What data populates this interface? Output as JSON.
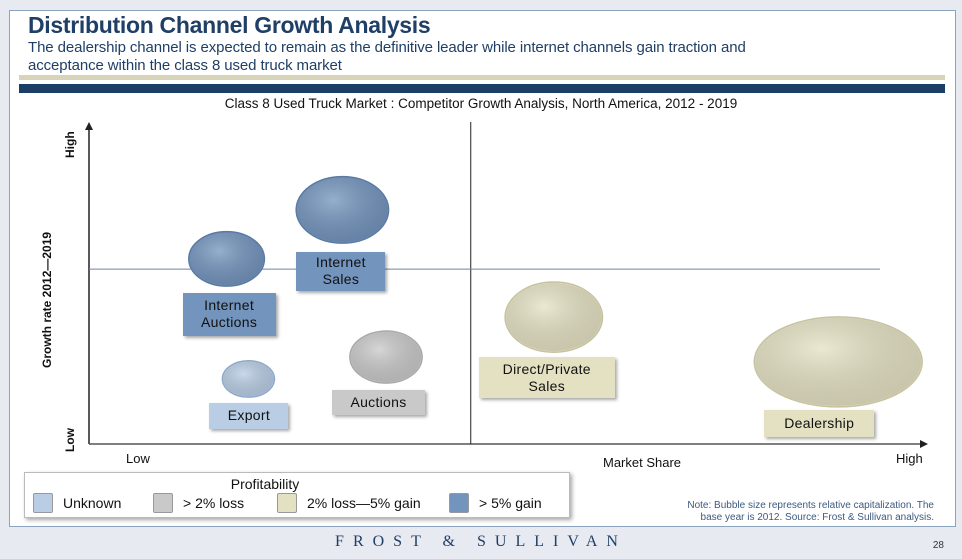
{
  "header": {
    "title": "Distribution Channel Growth Analysis",
    "subtitle_line1": "The dealership channel is expected to remain as the definitive leader while internet channels gain traction and",
    "subtitle_line2": "acceptance within the class 8 used truck market"
  },
  "chart_data": {
    "type": "bubble",
    "title": "Class 8 Used Truck Market : Competitor Growth Analysis, North America, 2012 - 2019",
    "xlabel": "Market Share",
    "ylabel": "Growth rate 2012—2019",
    "x_ticks": {
      "low": "Low",
      "high": "High"
    },
    "y_ticks": {
      "low": "Low",
      "high": "High"
    },
    "scale_note": "relative position 0-100 (axes unnumbered)",
    "xlim": [
      0,
      100
    ],
    "ylim": [
      0,
      100
    ],
    "quadrant_divider": {
      "x": 45.5,
      "y": 54.3
    },
    "points": [
      {
        "label": "Internet Auctions",
        "x": 16.4,
        "y": 57.5,
        "size": 45,
        "category": "> 5% gain"
      },
      {
        "label": "Internet Sales",
        "x": 30.2,
        "y": 72.7,
        "size": 55,
        "category": "> 5% gain"
      },
      {
        "label": "Export",
        "x": 19.0,
        "y": 20.2,
        "size": 31,
        "category": "Unknown"
      },
      {
        "label": "Auctions",
        "x": 35.4,
        "y": 27.0,
        "size": 43,
        "category": "> 2% loss"
      },
      {
        "label": "Direct/Private Sales",
        "x": 55.4,
        "y": 39.4,
        "size": 58,
        "category": "2% loss—5% gain"
      },
      {
        "label": "Dealership",
        "x": 89.3,
        "y": 25.5,
        "size": 100,
        "category": "2% loss—5% gain"
      }
    ],
    "legend": {
      "title": "Profitability",
      "position": "bottom-left",
      "items": [
        {
          "label": "Unknown",
          "color": "#b9cde4"
        },
        {
          "label": "> 2% loss",
          "color": "#c9c9c9"
        },
        {
          "label": "2% loss—5% gain",
          "color": "#e4e1c3"
        },
        {
          "label": "> 5% gain",
          "color": "#7394bd"
        }
      ]
    },
    "note_line1": "Note: Bubble size represents relative capitalization. The",
    "note_line2": "base year is 2012. Source: Frost & Sullivan analysis."
  },
  "footer": {
    "brand": "FROST & SULLIVAN",
    "page": "28"
  }
}
